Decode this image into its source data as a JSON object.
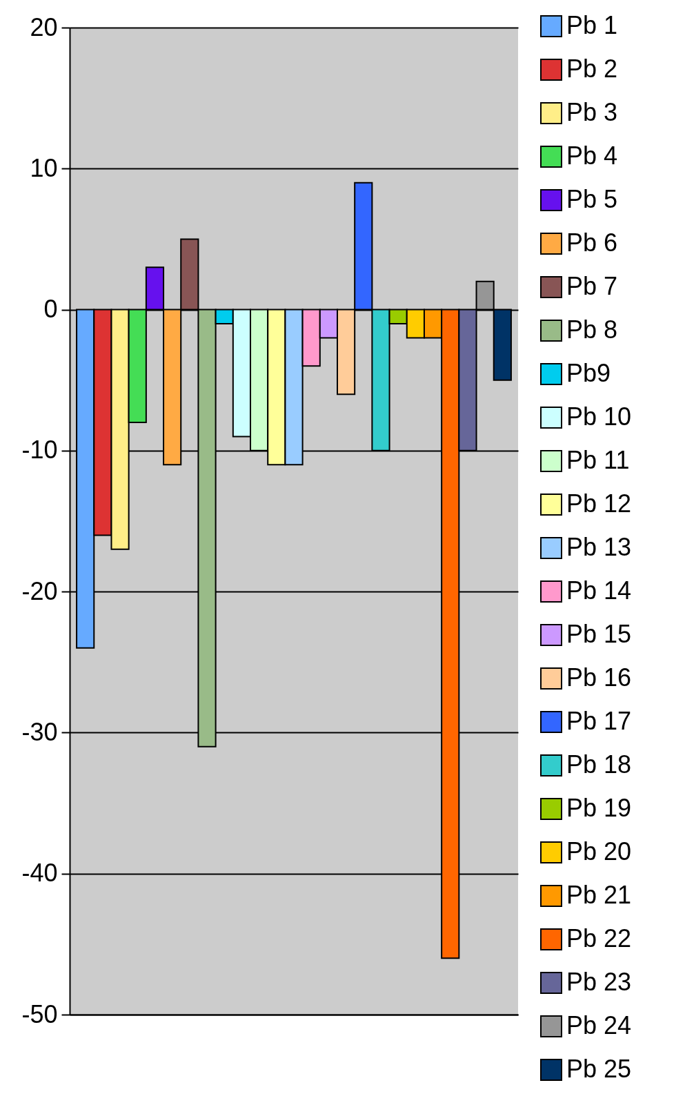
{
  "chart_data": {
    "type": "bar",
    "categories": [
      null
    ],
    "series": [
      {
        "name": "Pb 1",
        "color": "#66aaff",
        "values": [
          -24
        ]
      },
      {
        "name": "Pb 2",
        "color": "#dd3333",
        "values": [
          -16
        ]
      },
      {
        "name": "Pb 3",
        "color": "#ffee88",
        "values": [
          -17
        ]
      },
      {
        "name": "Pb 4",
        "color": "#44dd55",
        "values": [
          -8
        ]
      },
      {
        "name": "Pb 5",
        "color": "#6611ee",
        "values": [
          3
        ]
      },
      {
        "name": "Pb 6",
        "color": "#ffaa44",
        "values": [
          -11
        ]
      },
      {
        "name": "Pb 7",
        "color": "#885555",
        "values": [
          5
        ]
      },
      {
        "name": "Pb 8",
        "color": "#99bb88",
        "values": [
          -31
        ]
      },
      {
        "name": "Pb9",
        "color": "#00ccee",
        "values": [
          -1
        ]
      },
      {
        "name": "Pb 10",
        "color": "#ccffff",
        "values": [
          -9
        ]
      },
      {
        "name": "Pb 11",
        "color": "#ccffcc",
        "values": [
          -10
        ]
      },
      {
        "name": "Pb 12",
        "color": "#ffff99",
        "values": [
          -11
        ]
      },
      {
        "name": "Pb 13",
        "color": "#99ccff",
        "values": [
          -11
        ]
      },
      {
        "name": "Pb 14",
        "color": "#ff99cc",
        "values": [
          -4
        ]
      },
      {
        "name": "Pb 15",
        "color": "#cc99ff",
        "values": [
          -2
        ]
      },
      {
        "name": "Pb 16",
        "color": "#ffcc99",
        "values": [
          -6
        ]
      },
      {
        "name": "Pb 17",
        "color": "#3366ff",
        "values": [
          9
        ]
      },
      {
        "name": "Pb 18",
        "color": "#33cccc",
        "values": [
          -10
        ]
      },
      {
        "name": "Pb 19",
        "color": "#99cc00",
        "values": [
          -1
        ]
      },
      {
        "name": "Pb 20",
        "color": "#ffcc00",
        "values": [
          -2
        ]
      },
      {
        "name": "Pb 21",
        "color": "#ff9900",
        "values": [
          -2
        ]
      },
      {
        "name": "Pb 22",
        "color": "#ff6600",
        "values": [
          -46
        ]
      },
      {
        "name": "Pb 23",
        "color": "#666699",
        "values": [
          -10
        ]
      },
      {
        "name": "Pb 24",
        "color": "#969696",
        "values": [
          2
        ]
      },
      {
        "name": "Pb 25",
        "color": "#003366",
        "values": [
          -5
        ]
      }
    ],
    "ylim": [
      -50,
      20
    ],
    "yticks": [
      -50,
      -40,
      -30,
      -20,
      -10,
      0,
      10,
      20
    ],
    "grid": "y",
    "legend": "right"
  }
}
